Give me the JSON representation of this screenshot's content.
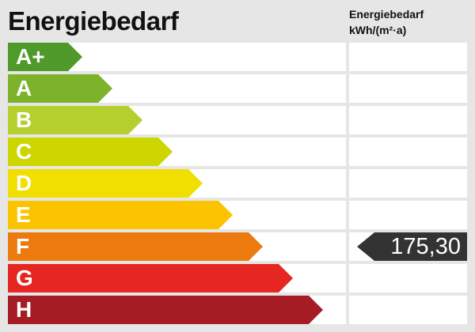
{
  "title": "Energiebedarf",
  "unit_label": {
    "line1": "Energiebedarf",
    "line2": "kWh/(m²·a)"
  },
  "classes": [
    {
      "label": "A+",
      "color": "#4f9a2a"
    },
    {
      "label": "A",
      "color": "#7cb32b"
    },
    {
      "label": "B",
      "color": "#b5cf2f"
    },
    {
      "label": "C",
      "color": "#cdd600"
    },
    {
      "label": "D",
      "color": "#f0df00"
    },
    {
      "label": "E",
      "color": "#fcc400"
    },
    {
      "label": "F",
      "color": "#ec7a0e"
    },
    {
      "label": "G",
      "color": "#e52621"
    },
    {
      "label": "H",
      "color": "#a51c24"
    }
  ],
  "indicator": {
    "value": "175,30",
    "class": "F",
    "color": "#333333"
  }
}
